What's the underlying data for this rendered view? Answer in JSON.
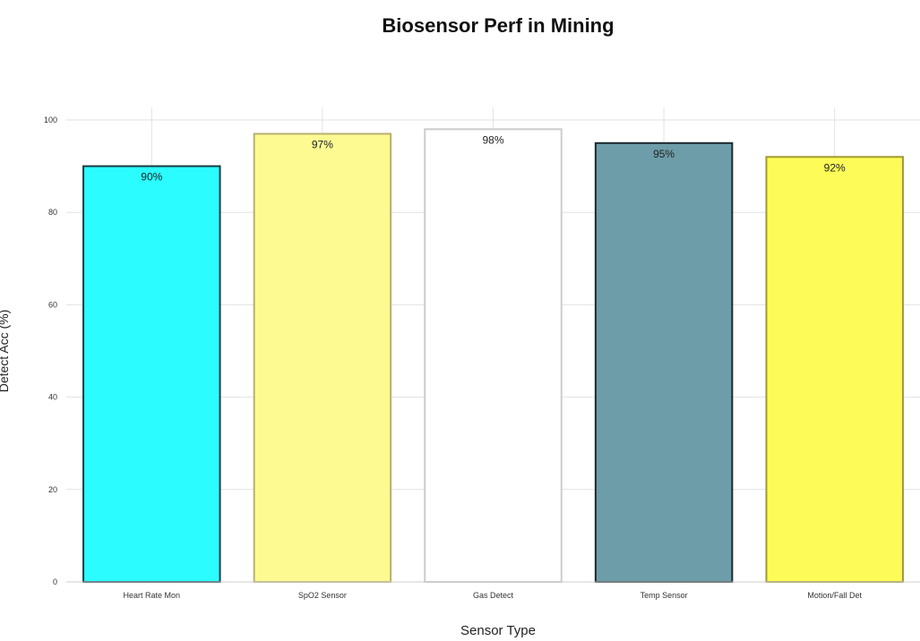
{
  "chart_data": {
    "type": "bar",
    "title": "Biosensor Perf in Mining",
    "xlabel": "Sensor Type",
    "ylabel": "Detect Acc (%)",
    "categories": [
      "Heart Rate Mon",
      "SpO2 Sensor",
      "Gas Detect",
      "Temp Sensor",
      "Motion/Fall Det"
    ],
    "values": [
      90,
      97,
      98,
      95,
      92
    ],
    "data_labels": [
      "90%",
      "97%",
      "98%",
      "95%",
      "92%"
    ],
    "ylim": [
      0,
      100
    ],
    "yticks": [
      "0",
      "20",
      "40",
      "60",
      "80",
      "100"
    ],
    "grid": true,
    "colors": [
      "#2afcff",
      "#fdfa91",
      "#ffffff",
      "#6d9da8",
      "#fdfb57"
    ],
    "edge_colors": [
      "#1a3a40",
      "#b8b070",
      "#cccccc",
      "#1c2a30",
      "#a09a30"
    ]
  }
}
